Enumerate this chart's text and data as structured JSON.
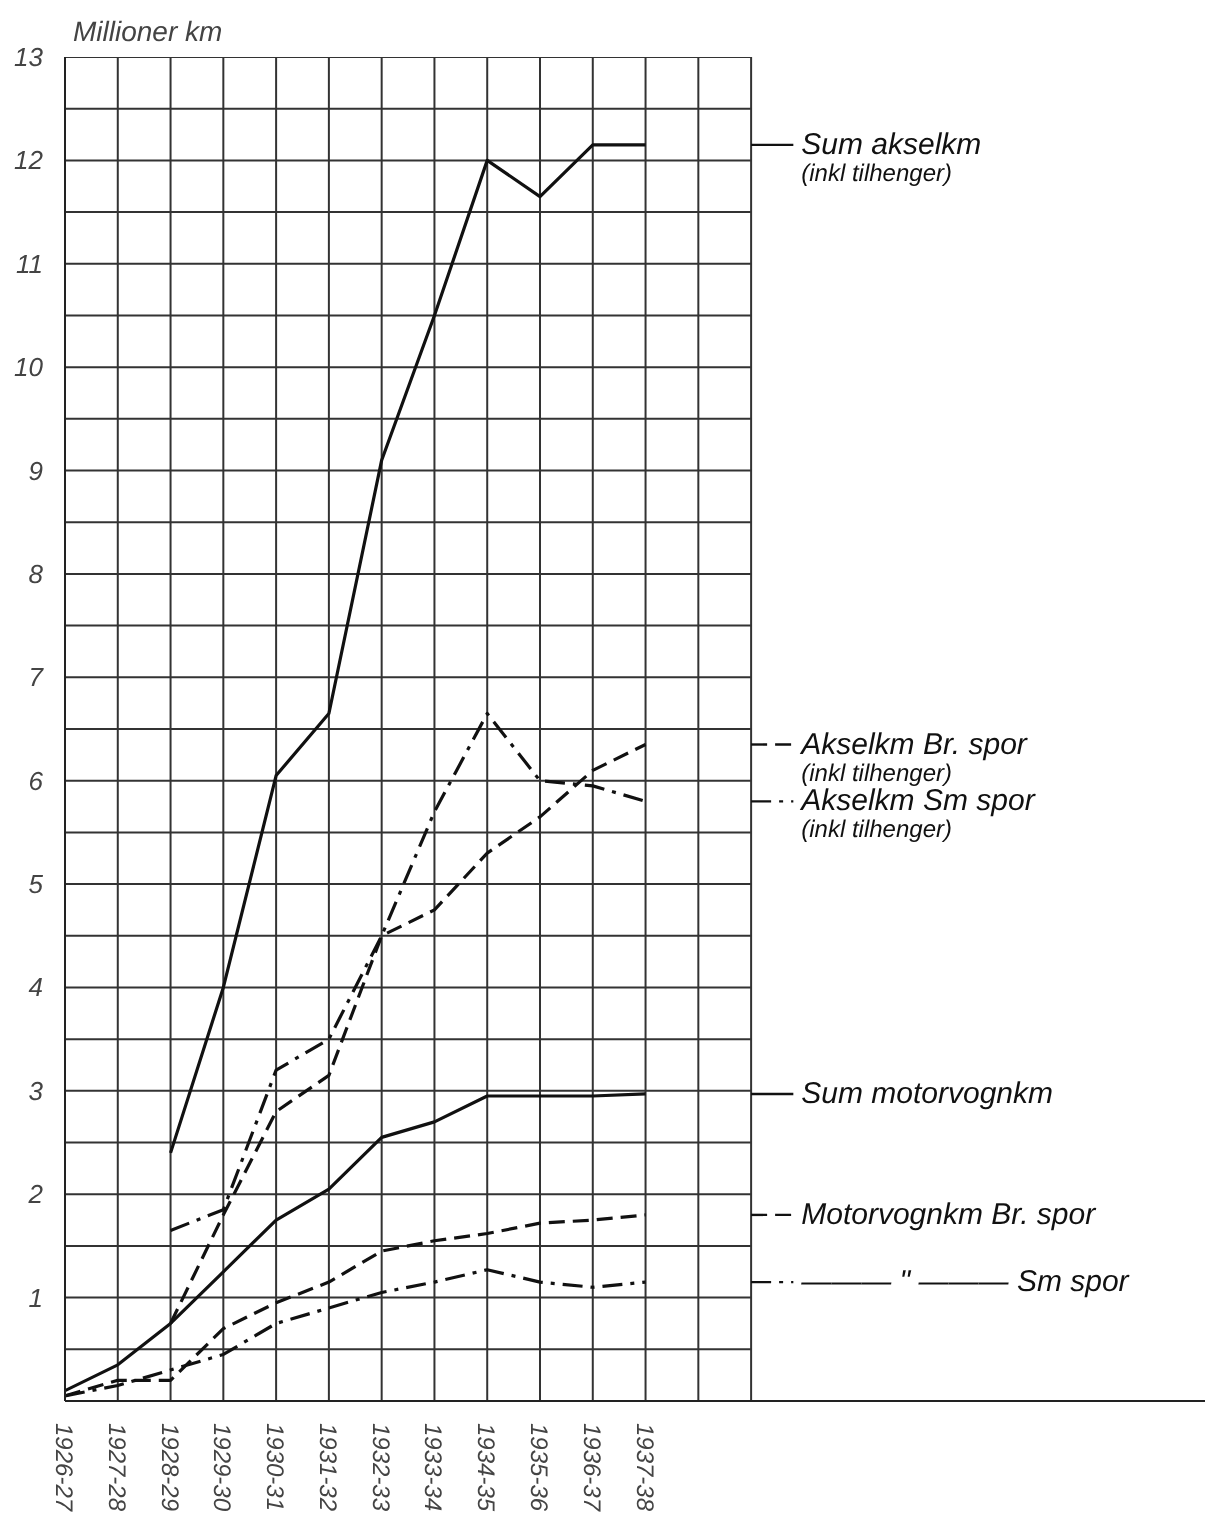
{
  "chart_data": {
    "type": "line",
    "ylabel": "Millioner km",
    "categories": [
      "1926-27",
      "1927-28",
      "1928-29",
      "1929-30",
      "1930-31",
      "1931-32",
      "1932-33",
      "1933-34",
      "1934-35",
      "1935-36",
      "1936-37",
      "1937-38"
    ],
    "series": [
      {
        "name": "Sum akselkm\n(inkl tilhenger)",
        "color": "#111111",
        "line_style": "solid",
        "values": [
          null,
          null,
          2.4,
          4.0,
          6.05,
          6.65,
          9.1,
          10.5,
          12.0,
          11.65,
          12.15,
          12.15
        ]
      },
      {
        "name": "Akselkm  Br. spor\n(inkl tilhenger)",
        "color": "#111111",
        "line_style": "dashed",
        "values": [
          null,
          null,
          0.75,
          1.8,
          2.8,
          3.15,
          4.5,
          4.75,
          5.3,
          5.65,
          6.1,
          6.35
        ]
      },
      {
        "name": "Akselkm  Sm spor\n(inkl tilhenger)",
        "color": "#111111",
        "line_style": "dashdot",
        "values": [
          null,
          null,
          1.65,
          1.85,
          3.2,
          3.5,
          4.5,
          5.7,
          6.65,
          6.0,
          5.95,
          5.8
        ]
      },
      {
        "name": "Sum motorvognkm",
        "color": "#111111",
        "line_style": "solid",
        "values": [
          0.1,
          0.35,
          0.75,
          1.25,
          1.75,
          2.05,
          2.55,
          2.7,
          2.95,
          2.95,
          2.95,
          2.97
        ]
      },
      {
        "name": "Motorvognkm  Br. spor",
        "color": "#111111",
        "line_style": "dashed",
        "values": [
          0.05,
          0.2,
          0.2,
          0.7,
          0.95,
          1.15,
          1.45,
          1.55,
          1.62,
          1.72,
          1.75,
          1.8
        ]
      },
      {
        "name": "——— \" ———  Sm spor",
        "color": "#111111",
        "line_style": "dashdot",
        "values": [
          0.05,
          0.15,
          0.3,
          0.45,
          0.75,
          0.9,
          1.05,
          1.15,
          1.27,
          1.15,
          1.1,
          1.15
        ]
      }
    ],
    "ylim": [
      0,
      13
    ],
    "yticks": [
      {
        "value": 0.5,
        "label": null
      },
      1,
      {
        "value": 1.5,
        "label": null
      },
      2,
      {
        "value": 2.5,
        "label": null
      },
      3,
      {
        "value": 3.5,
        "label": null
      },
      4,
      {
        "value": 4.5,
        "label": null
      },
      5,
      {
        "value": 5.5,
        "label": null
      },
      6,
      {
        "value": 6.5,
        "label": null
      },
      7,
      {
        "value": 7.5,
        "label": null
      },
      8,
      {
        "value": 8.5,
        "label": null
      },
      9,
      {
        "value": 9.5,
        "label": null
      },
      10,
      {
        "value": 10.5,
        "label": null
      },
      11,
      {
        "value": 11.5,
        "label": null
      },
      12,
      {
        "value": 12.5,
        "label": null
      },
      13
    ],
    "grid": true,
    "legend": "right"
  }
}
